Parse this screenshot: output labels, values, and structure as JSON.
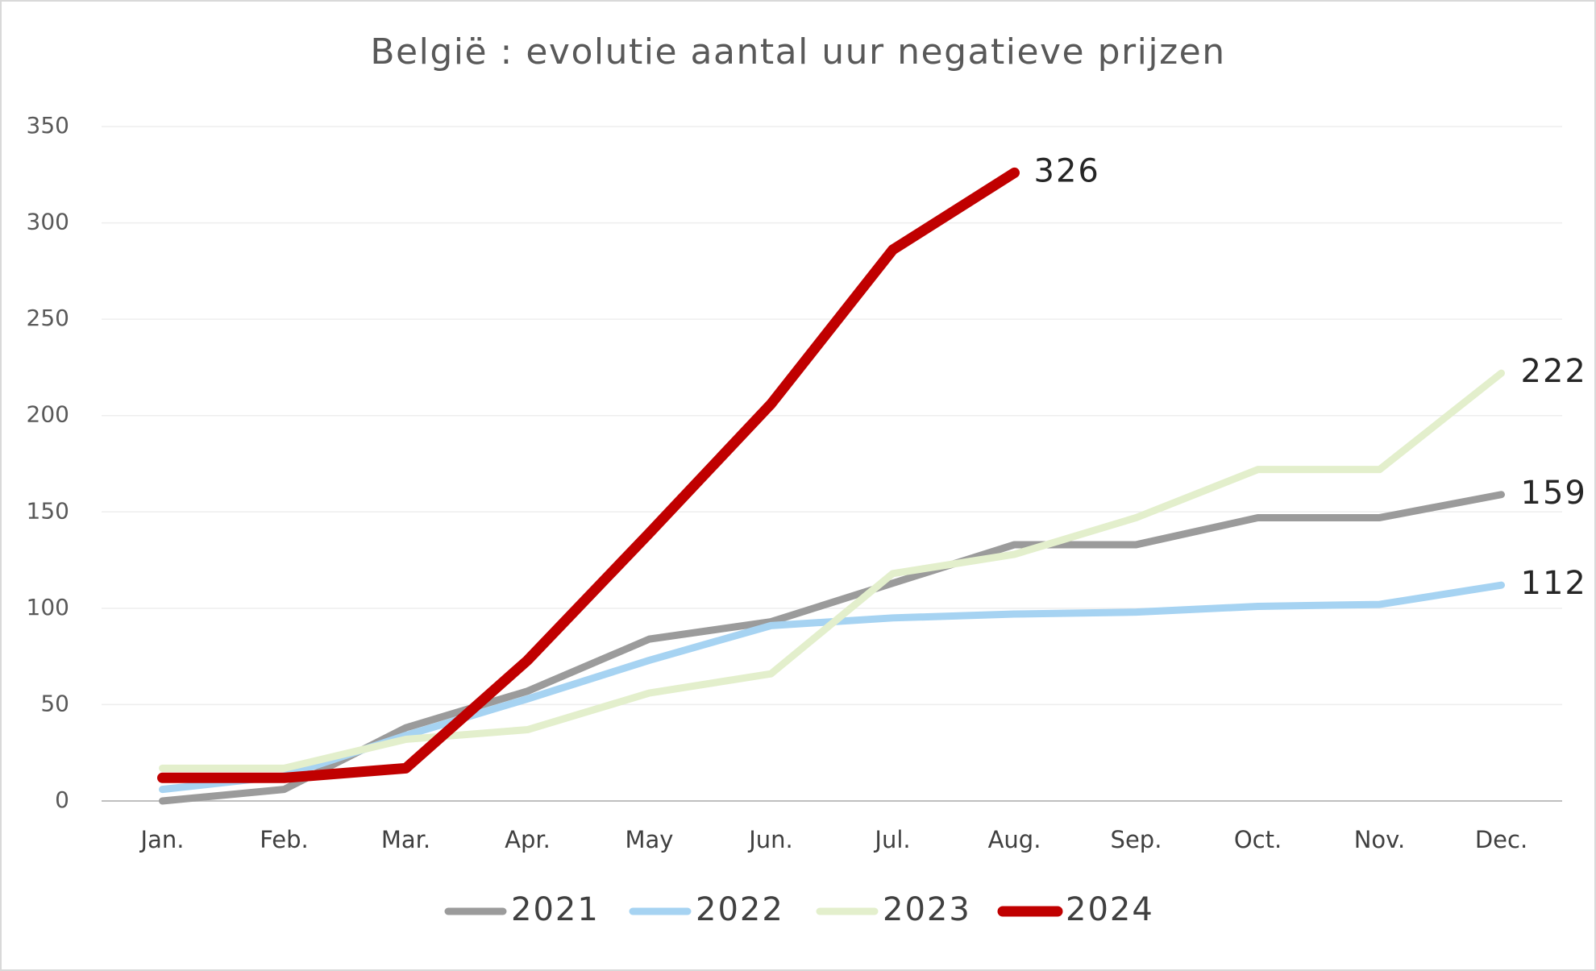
{
  "chart_data": {
    "type": "line",
    "title": "België : evolutie aantal uur negatieve prijzen",
    "categories": [
      "Jan.",
      "Feb.",
      "Mar.",
      "Apr.",
      "May",
      "Jun.",
      "Jul.",
      "Aug.",
      "Sep.",
      "Oct.",
      "Nov.",
      "Dec."
    ],
    "series": [
      {
        "name": "2021",
        "color": "#9b9b9b",
        "values": [
          0,
          6,
          38,
          57,
          84,
          93,
          113,
          133,
          133,
          147,
          147,
          159
        ]
      },
      {
        "name": "2022",
        "color": "#a6d3f2",
        "values": [
          6,
          13,
          34,
          53,
          73,
          91,
          95,
          97,
          98,
          101,
          102,
          112
        ]
      },
      {
        "name": "2023",
        "color": "#e3efcc",
        "values": [
          17,
          17,
          32,
          37,
          56,
          66,
          118,
          128,
          147,
          172,
          172,
          222
        ]
      },
      {
        "name": "2024",
        "color": "#c00000",
        "values": [
          12,
          12,
          17,
          73,
          139,
          206,
          286,
          326,
          null,
          null,
          null,
          null
        ]
      }
    ],
    "ylim": [
      0,
      350
    ],
    "yticks": [
      0,
      50,
      100,
      150,
      200,
      250,
      300,
      350
    ],
    "grid": true,
    "legend": "bottom"
  }
}
